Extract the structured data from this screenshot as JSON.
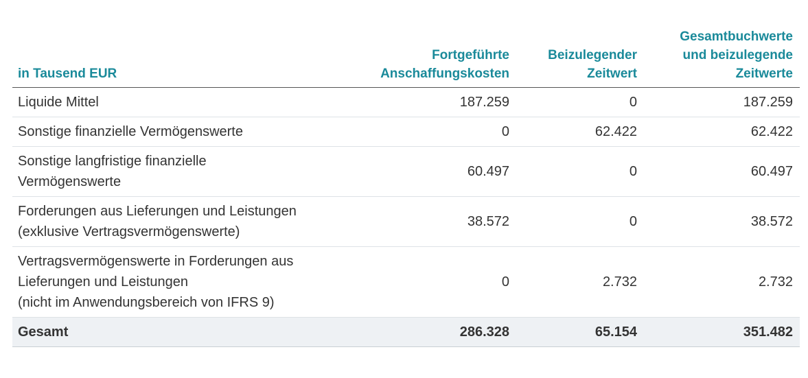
{
  "table": {
    "header": [
      [
        "in Tausend EUR"
      ],
      [
        "Fortgeführte",
        "Anschaffungskosten"
      ],
      [
        "Beizulegender",
        "Zeitwert"
      ],
      [
        "Gesamtbuchwerte",
        "und beizulegende",
        "Zeitwerte"
      ]
    ],
    "rows": [
      [
        [
          "Liquide Mittel"
        ],
        "187.259",
        "0",
        "187.259"
      ],
      [
        [
          "Sonstige finanzielle Vermögenswerte"
        ],
        "0",
        "62.422",
        "62.422"
      ],
      [
        [
          "Sonstige langfristige finanzielle",
          "Vermögenswerte"
        ],
        "60.497",
        "0",
        "60.497"
      ],
      [
        [
          "Forderungen aus Lieferungen und Leistungen",
          "(exklusive Vertragsvermögenswerte)"
        ],
        "38.572",
        "0",
        "38.572"
      ],
      [
        [
          "Vertragsvermögenswerte in Forderungen aus",
          "Lieferungen und Leistungen",
          "(nicht im Anwendungsbereich von IFRS 9)"
        ],
        "0",
        "2.732",
        "2.732"
      ]
    ],
    "total": [
      "Gesamt",
      "286.328",
      "65.154",
      "351.482"
    ]
  }
}
